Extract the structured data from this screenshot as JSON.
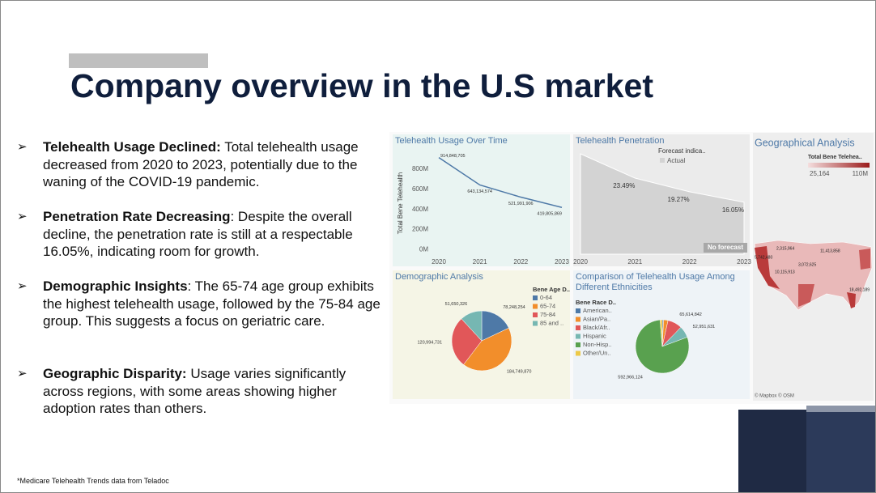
{
  "title": "Company overview in the U.S market",
  "bullets": [
    {
      "heading": "Telehealth Usage Declined:",
      "text": " Total telehealth usage decreased from 2020 to 2023, potentially due to the waning of the COVID-19 pandemic."
    },
    {
      "heading": "Penetration Rate Decreasing",
      "text": ": Despite the overall decline, the penetration rate is still at a respectable 16.05%, indicating room for growth."
    },
    {
      "heading": "Demographic Insights",
      "text": ": The 65-74 age group exhibits the highest telehealth usage, followed by the 75-84 age group. This suggests a focus on geriatric care."
    },
    {
      "heading": "Geographic Disparity:",
      "text": " Usage varies significantly across regions, with some areas showing higher adoption rates than others."
    }
  ],
  "footnote": "*Medicare Telehealth Trends data from Teladoc",
  "chart_data": [
    {
      "type": "line",
      "title": "Telehealth Usage Over Time",
      "y_label": "Total Bene Telehealth",
      "x": [
        2020,
        2021,
        2022,
        2023
      ],
      "values": [
        914848705,
        643134574,
        521991906,
        419805869
      ],
      "value_labels": [
        "914,848,705",
        "643,134,574",
        "521,991,906",
        "419,805,869"
      ],
      "color": "#4e79a7",
      "xlim": [
        2020,
        2023
      ],
      "xticks": [
        2020,
        2021,
        2022,
        2023
      ],
      "ylim": [
        -100000000,
        1000000000
      ],
      "yticks": [
        {
          "value": 0,
          "label": "0M"
        },
        {
          "value": 200000000,
          "label": "200M"
        },
        {
          "value": 400000000,
          "label": "400M"
        },
        {
          "value": 600000000,
          "label": "600M"
        },
        {
          "value": 800000000,
          "label": "800M"
        }
      ]
    },
    {
      "type": "area",
      "title": "Telehealth Penetration",
      "x": [
        2020,
        2021,
        2022,
        2023
      ],
      "values": [
        31,
        23.49,
        19.27,
        16.05
      ],
      "value_labels": [
        null,
        "23.49%",
        "19.27%",
        "16.05%"
      ],
      "color": "#d3d3d3",
      "xlim": [
        2020,
        2023
      ],
      "xticks": [
        2020,
        2021,
        2022,
        2023
      ],
      "ylim": [
        0,
        32
      ],
      "legend_title": "Forecast indica..",
      "legend_entry": "Actual",
      "annotation": "No forecast"
    },
    {
      "type": "pie",
      "title": "Demographic Analysis",
      "legend_title": "Bene Age D..",
      "categories": [
        "0-64",
        "65-74",
        "75-84",
        "85 and .."
      ],
      "values": [
        78248254,
        184749870,
        120994731,
        51650326
      ],
      "value_labels": [
        "78,248,254",
        "184,749,870",
        "120,994,731",
        "51,650,326"
      ],
      "colors": [
        "#4e79a7",
        "#f28e2b",
        "#e15759",
        "#76b7b2"
      ]
    },
    {
      "type": "pie",
      "title": "Comparison of Telehealth Usage Among Different Ethnicities",
      "legend_title": "Bene Race D..",
      "categories": [
        "American..",
        "Asian/Pa..",
        "Black/Afr..",
        "Hispanic",
        "Non-Hisp..",
        "Other/Un.."
      ],
      "values": [
        6000000,
        20000000,
        65614842,
        52951631,
        592966124,
        10000000
      ],
      "value_labels": [
        null,
        null,
        "65,614,842",
        "52,951,631",
        "592,966,124",
        null
      ],
      "colors": [
        "#4e79a7",
        "#f28e2b",
        "#e15759",
        "#76b7b2",
        "#59a14f",
        "#edc948"
      ]
    }
  ],
  "map": {
    "title": "Geographical Analysis",
    "legend_title": "Total Bene Telehea..",
    "legend_min": "25,164",
    "legend_max": "110M",
    "labels": [
      "2,315,964",
      "5,742,480",
      "11,413,858",
      "10,115,913",
      "3,072,625",
      "18,492,189"
    ],
    "credit": "© Mapbox © OSM"
  }
}
